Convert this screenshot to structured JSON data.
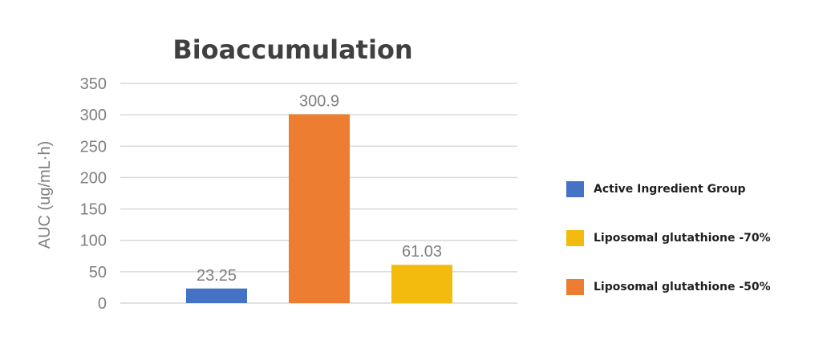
{
  "chart_data": {
    "type": "bar",
    "title": "Bioaccumulation",
    "xlabel": "",
    "ylabel": "AUC  (ug/mL·h)",
    "ylim": [
      0,
      350
    ],
    "yticks": [
      0,
      50,
      100,
      150,
      200,
      250,
      300,
      350
    ],
    "grid": true,
    "legend_position": "right",
    "categories": [
      "Active Ingredient Group",
      "Liposomal glutathione -50%",
      "Liposomal glutathione -70%"
    ],
    "values": [
      23.25,
      300.9,
      61.03
    ],
    "data_labels": [
      "23.25",
      "300.9",
      "61.03"
    ],
    "colors": [
      "#4472c4",
      "#ed7d31",
      "#f2bb0e"
    ]
  },
  "legend": [
    {
      "label": "Active Ingredient Group",
      "color": "#4472c4"
    },
    {
      "label": "Liposomal glutathione -70%",
      "color": "#f2bb0e"
    },
    {
      "label": "Liposomal glutathione -50%",
      "color": "#ed7d31"
    }
  ],
  "style": {
    "title_color": "#404040",
    "axis_text_color": "#7f7f7f",
    "grid_color": "#d9d9d9"
  }
}
